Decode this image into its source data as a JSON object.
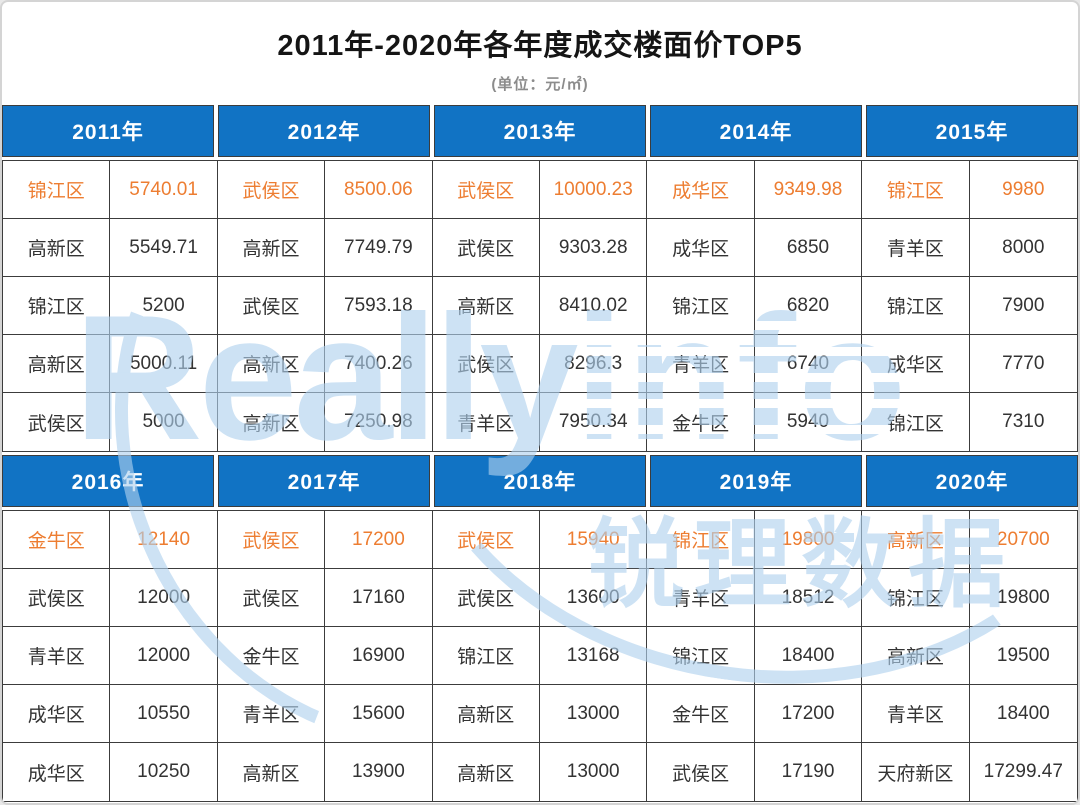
{
  "page": {
    "title": "2011年-2020年各年度成交楼面价TOP5",
    "subtitle": "(单位：元/㎡)"
  },
  "watermark": {
    "brand_latin": "Really",
    "brand_latin_striped": "info",
    "brand_cn": "锐理数据"
  },
  "colors": {
    "header_blue": "#1173C4",
    "top_rank_orange": "#ED7D31",
    "watermark_blue": "#AFD1EE",
    "body_text": "#333333",
    "grid_line": "#3c3c3c",
    "subtitle_gray": "#8c8c8c"
  },
  "chart_data": {
    "type": "table",
    "title": "2011年-2020年各年度成交楼面价TOP5",
    "unit": "元/㎡",
    "note": "each year lists TOP5 transaction floor prices; rank 1 highlighted orange",
    "sections": [
      {
        "years": [
          {
            "year": "2011年",
            "top5": [
              {
                "district": "锦江区",
                "price": "5740.01"
              },
              {
                "district": "高新区",
                "price": "5549.71"
              },
              {
                "district": "锦江区",
                "price": "5200"
              },
              {
                "district": "高新区",
                "price": "5000.11"
              },
              {
                "district": "武侯区",
                "price": "5000"
              }
            ]
          },
          {
            "year": "2012年",
            "top5": [
              {
                "district": "武侯区",
                "price": "8500.06"
              },
              {
                "district": "高新区",
                "price": "7749.79"
              },
              {
                "district": "武侯区",
                "price": "7593.18"
              },
              {
                "district": "高新区",
                "price": "7400.26"
              },
              {
                "district": "高新区",
                "price": "7250.98"
              }
            ]
          },
          {
            "year": "2013年",
            "top5": [
              {
                "district": "武侯区",
                "price": "10000.23"
              },
              {
                "district": "武侯区",
                "price": "9303.28"
              },
              {
                "district": "高新区",
                "price": "8410.02"
              },
              {
                "district": "武侯区",
                "price": "8296.3"
              },
              {
                "district": "青羊区",
                "price": "7950.34"
              }
            ]
          },
          {
            "year": "2014年",
            "top5": [
              {
                "district": "成华区",
                "price": "9349.98"
              },
              {
                "district": "成华区",
                "price": "6850"
              },
              {
                "district": "锦江区",
                "price": "6820"
              },
              {
                "district": "青羊区",
                "price": "6740"
              },
              {
                "district": "金牛区",
                "price": "5940"
              }
            ]
          },
          {
            "year": "2015年",
            "top5": [
              {
                "district": "锦江区",
                "price": "9980"
              },
              {
                "district": "青羊区",
                "price": "8000"
              },
              {
                "district": "锦江区",
                "price": "7900"
              },
              {
                "district": "成华区",
                "price": "7770"
              },
              {
                "district": "锦江区",
                "price": "7310"
              }
            ]
          }
        ]
      },
      {
        "years": [
          {
            "year": "2016年",
            "top5": [
              {
                "district": "金牛区",
                "price": "12140"
              },
              {
                "district": "武侯区",
                "price": "12000"
              },
              {
                "district": "青羊区",
                "price": "12000"
              },
              {
                "district": "成华区",
                "price": "10550"
              },
              {
                "district": "成华区",
                "price": "10250"
              }
            ]
          },
          {
            "year": "2017年",
            "top5": [
              {
                "district": "武侯区",
                "price": "17200"
              },
              {
                "district": "武侯区",
                "price": "17160"
              },
              {
                "district": "金牛区",
                "price": "16900"
              },
              {
                "district": "青羊区",
                "price": "15600"
              },
              {
                "district": "高新区",
                "price": "13900"
              }
            ]
          },
          {
            "year": "2018年",
            "top5": [
              {
                "district": "武侯区",
                "price": "15940"
              },
              {
                "district": "武侯区",
                "price": "13600"
              },
              {
                "district": "锦江区",
                "price": "13168"
              },
              {
                "district": "高新区",
                "price": "13000"
              },
              {
                "district": "高新区",
                "price": "13000"
              }
            ]
          },
          {
            "year": "2019年",
            "top5": [
              {
                "district": "锦江区",
                "price": "19800"
              },
              {
                "district": "青羊区",
                "price": "18512"
              },
              {
                "district": "锦江区",
                "price": "18400"
              },
              {
                "district": "金牛区",
                "price": "17200"
              },
              {
                "district": "武侯区",
                "price": "17190"
              }
            ]
          },
          {
            "year": "2020年",
            "top5": [
              {
                "district": "高新区",
                "price": "20700"
              },
              {
                "district": "锦江区",
                "price": "19800"
              },
              {
                "district": "高新区",
                "price": "19500"
              },
              {
                "district": "青羊区",
                "price": "18400"
              },
              {
                "district": "天府新区",
                "price": "17299.47"
              }
            ]
          }
        ]
      }
    ]
  }
}
